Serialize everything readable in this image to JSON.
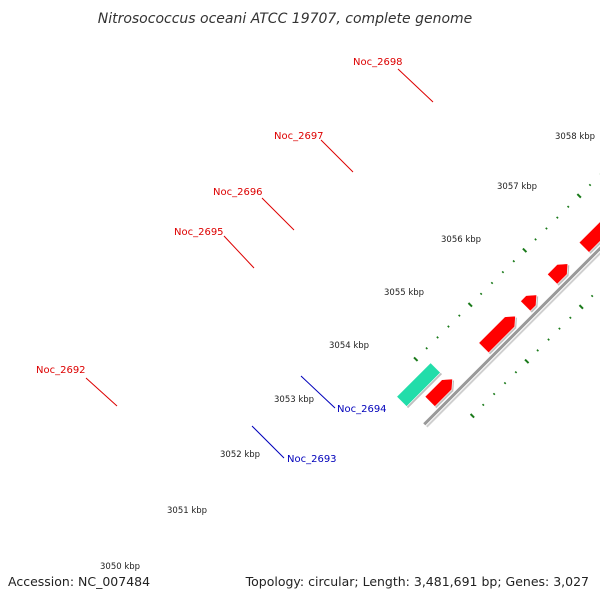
{
  "title": "Nitrosococcus oceani ATCC 19707, complete genome",
  "footer": {
    "accession": "Accession: NC_007484",
    "summary": "Topology: circular; Length: 3,481,691 bp; Genes: 3,027"
  },
  "colors": {
    "forward_cds": "#ff0000",
    "reverse_cds": "#0000ee",
    "forward_label": "#dd0000",
    "reverse_label": "#0000bb",
    "backbone": "#999999",
    "ticks": "#1a7a1a",
    "cyan": "#00e5e5",
    "navy": "#4a4a9a",
    "olive": "#6b8e23",
    "teal": "#22ddaa"
  },
  "scale": {
    "labels": [
      "3050 kbp",
      "3051 kbp",
      "3052 kbp",
      "3053 kbp",
      "3054 kbp",
      "3055 kbp",
      "3056 kbp",
      "3057 kbp",
      "3058 kbp"
    ]
  },
  "gene_labels": [
    {
      "name": "Noc_2692",
      "strand": "forward"
    },
    {
      "name": "Noc_2693",
      "strand": "reverse"
    },
    {
      "name": "Noc_2694",
      "strand": "reverse"
    },
    {
      "name": "Noc_2695",
      "strand": "forward"
    },
    {
      "name": "Noc_2696",
      "strand": "forward"
    },
    {
      "name": "Noc_2697",
      "strand": "forward"
    },
    {
      "name": "Noc_2698",
      "strand": "forward"
    }
  ]
}
